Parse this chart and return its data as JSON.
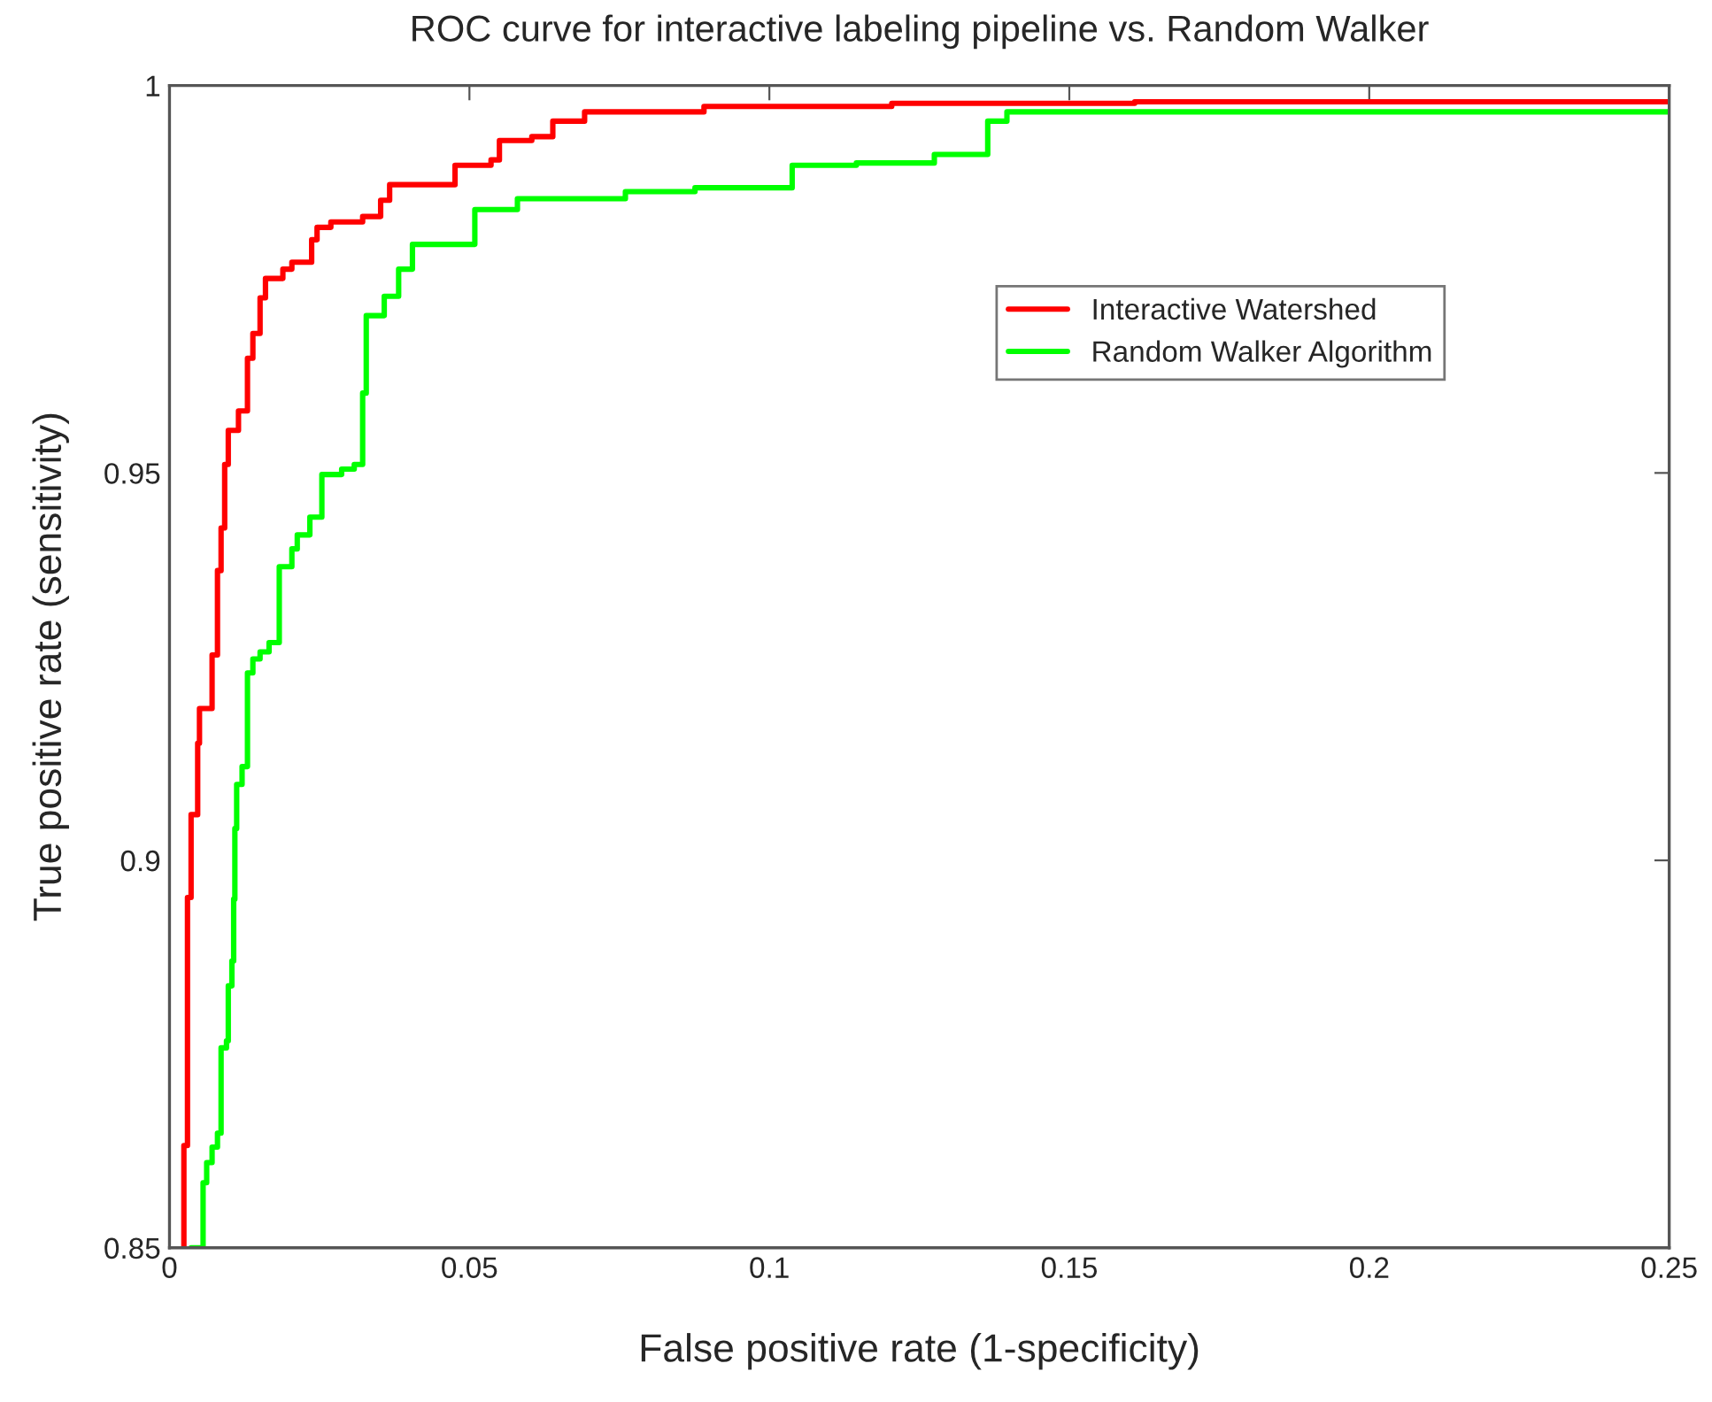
{
  "chart_data": {
    "type": "step",
    "title": "ROC curve for interactive labeling pipeline vs. Random Walker",
    "xlabel": "False positive rate (1-specificity)",
    "ylabel": "True positive rate (sensitivity)",
    "xlim": [
      0,
      0.25
    ],
    "ylim": [
      0.85,
      1
    ],
    "xticks": [
      0,
      0.05,
      0.1,
      0.15,
      0.2,
      0.25
    ],
    "yticks": [
      0.85,
      0.9,
      0.95,
      1
    ],
    "grid": false,
    "legend": "top right",
    "line_style": "solid",
    "marker": "none",
    "series": [
      {
        "name": "Interactive Watershed",
        "color": "#ff0000",
        "x": [
          0.0024,
          0.0024,
          0.003,
          0.0036,
          0.0047,
          0.005,
          0.0071,
          0.008,
          0.0086,
          0.0092,
          0.0098,
          0.0115,
          0.013,
          0.0139,
          0.0151,
          0.016,
          0.0189,
          0.0204,
          0.0237,
          0.0246,
          0.0269,
          0.0322,
          0.0352,
          0.0367,
          0.0476,
          0.0536,
          0.055,
          0.0604,
          0.0639,
          0.0692,
          0.0891,
          0.1204,
          0.1609,
          0.25
        ],
        "values": [
          0.85,
          0.8632,
          0.8952,
          0.9059,
          0.9151,
          0.9196,
          0.9265,
          0.9374,
          0.9429,
          0.9511,
          0.9555,
          0.958,
          0.9648,
          0.968,
          0.9726,
          0.9751,
          0.9763,
          0.9772,
          0.9801,
          0.9817,
          0.9824,
          0.9831,
          0.9852,
          0.9872,
          0.9897,
          0.9904,
          0.9929,
          0.9934,
          0.9954,
          0.9966,
          0.9973,
          0.9977,
          0.9979,
          0.9979
        ]
      },
      {
        "name": "Random Walker Algorithm",
        "color": "#00ff00",
        "x": [
          0.0036,
          0.0056,
          0.0062,
          0.0071,
          0.008,
          0.0086,
          0.0095,
          0.0098,
          0.0104,
          0.0107,
          0.0109,
          0.0112,
          0.0121,
          0.013,
          0.0139,
          0.0151,
          0.0166,
          0.0183,
          0.0204,
          0.0213,
          0.0234,
          0.0254,
          0.0287,
          0.0308,
          0.0322,
          0.0328,
          0.0358,
          0.0382,
          0.0405,
          0.0509,
          0.058,
          0.076,
          0.0876,
          0.1038,
          0.1145,
          0.1275,
          0.1364,
          0.1396,
          0.25
        ],
        "values": [
          0.85,
          0.8584,
          0.861,
          0.863,
          0.8648,
          0.8758,
          0.8767,
          0.8838,
          0.887,
          0.895,
          0.9041,
          0.9098,
          0.9121,
          0.9242,
          0.926,
          0.9269,
          0.9281,
          0.9379,
          0.9402,
          0.942,
          0.9443,
          0.9498,
          0.9505,
          0.9511,
          0.9603,
          0.9703,
          0.9728,
          0.9763,
          0.9795,
          0.984,
          0.9854,
          0.9863,
          0.9868,
          0.9897,
          0.99,
          0.9911,
          0.9954,
          0.9966,
          0.9966
        ]
      }
    ]
  }
}
